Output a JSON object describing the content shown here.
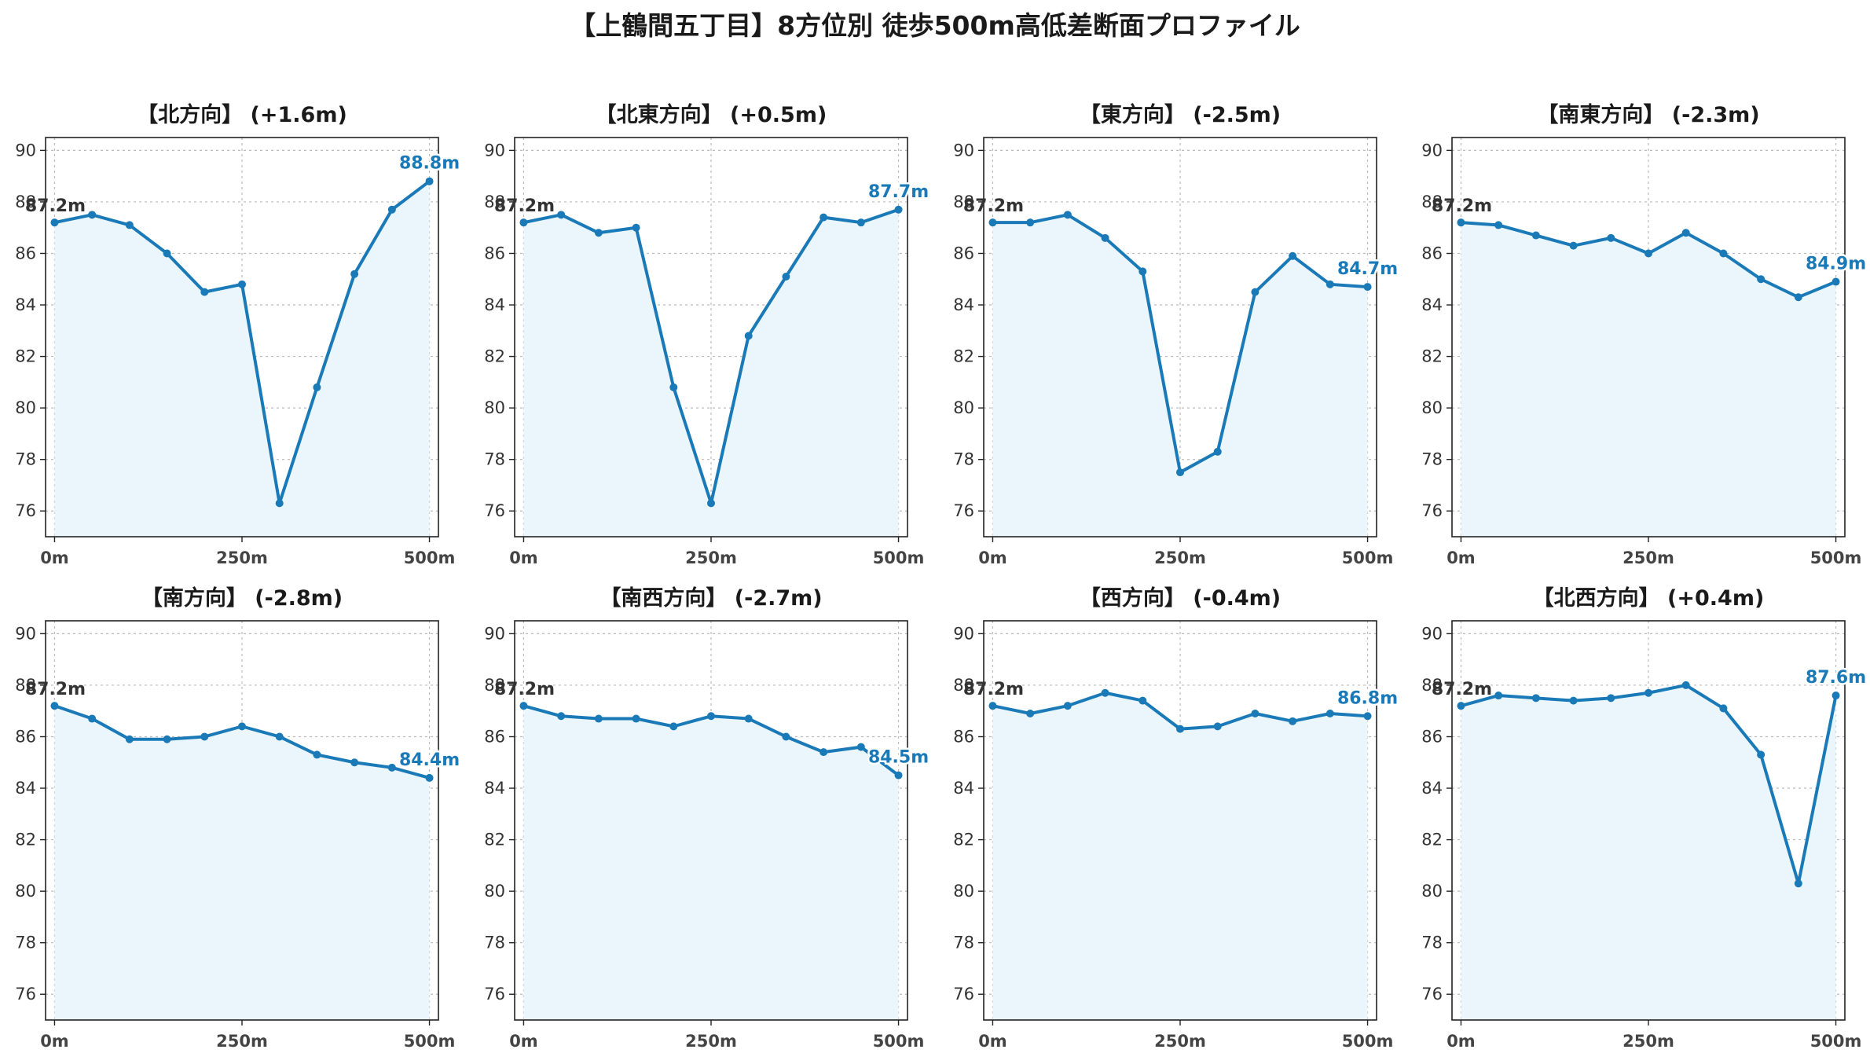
{
  "colors": {
    "line": "#1a7ab8",
    "fill": "#eaf6fb",
    "start_label": "#333333",
    "end_label": "#1a7ab8"
  },
  "chart_data": {
    "suptitle": "【上鶴間五丁目】8方位別 徒歩500m高低差断面プロファイル",
    "type": "line",
    "ylim": [
      75,
      90.5
    ],
    "yticks": [
      76,
      78,
      80,
      82,
      84,
      86,
      88,
      90
    ],
    "xlim": [
      -12,
      512
    ],
    "xticks": [
      0,
      250,
      500
    ],
    "xtick_labels": [
      "0m",
      "250m",
      "500m"
    ],
    "grid": true,
    "panels": [
      {
        "title": "【北方向】 (+1.6m)",
        "start_label": "87.2m",
        "end_label": "88.8m",
        "x": [
          0,
          50,
          100,
          150,
          200,
          250,
          300,
          350,
          400,
          450,
          500
        ],
        "y": [
          87.2,
          87.5,
          87.1,
          86.0,
          84.5,
          84.8,
          76.3,
          80.8,
          85.2,
          87.7,
          88.8
        ]
      },
      {
        "title": "【北東方向】 (+0.5m)",
        "start_label": "87.2m",
        "end_label": "87.7m",
        "x": [
          0,
          50,
          100,
          150,
          200,
          250,
          300,
          350,
          400,
          450,
          500
        ],
        "y": [
          87.2,
          87.5,
          86.8,
          87.0,
          80.8,
          76.3,
          82.8,
          85.1,
          87.4,
          87.2,
          87.7
        ]
      },
      {
        "title": "【東方向】 (-2.5m)",
        "start_label": "87.2m",
        "end_label": "84.7m",
        "x": [
          0,
          50,
          100,
          150,
          200,
          250,
          300,
          350,
          400,
          450,
          500
        ],
        "y": [
          87.2,
          87.2,
          87.5,
          86.6,
          85.3,
          77.5,
          78.3,
          84.5,
          85.9,
          84.8,
          84.7
        ]
      },
      {
        "title": "【南東方向】 (-2.3m)",
        "start_label": "87.2m",
        "end_label": "84.9m",
        "x": [
          0,
          50,
          100,
          150,
          200,
          250,
          300,
          350,
          400,
          450,
          500
        ],
        "y": [
          87.2,
          87.1,
          86.7,
          86.3,
          86.6,
          86.0,
          86.8,
          86.0,
          85.0,
          84.3,
          84.9
        ]
      },
      {
        "title": "【南方向】 (-2.8m)",
        "start_label": "87.2m",
        "end_label": "84.4m",
        "x": [
          0,
          50,
          100,
          150,
          200,
          250,
          300,
          350,
          400,
          450,
          500
        ],
        "y": [
          87.2,
          86.7,
          85.9,
          85.9,
          86.0,
          86.4,
          86.0,
          85.3,
          85.0,
          84.8,
          84.4
        ]
      },
      {
        "title": "【南西方向】 (-2.7m)",
        "start_label": "87.2m",
        "end_label": "84.5m",
        "x": [
          0,
          50,
          100,
          150,
          200,
          250,
          300,
          350,
          400,
          450,
          500
        ],
        "y": [
          87.2,
          86.8,
          86.7,
          86.7,
          86.4,
          86.8,
          86.7,
          86.0,
          85.4,
          85.6,
          84.5
        ]
      },
      {
        "title": "【西方向】 (-0.4m)",
        "start_label": "87.2m",
        "end_label": "86.8m",
        "x": [
          0,
          50,
          100,
          150,
          200,
          250,
          300,
          350,
          400,
          450,
          500
        ],
        "y": [
          87.2,
          86.9,
          87.2,
          87.7,
          87.4,
          86.3,
          86.4,
          86.9,
          86.6,
          86.9,
          86.8
        ]
      },
      {
        "title": "【北西方向】 (+0.4m)",
        "start_label": "87.2m",
        "end_label": "87.6m",
        "x": [
          0,
          50,
          100,
          150,
          200,
          250,
          300,
          350,
          400,
          450,
          500
        ],
        "y": [
          87.2,
          87.6,
          87.5,
          87.4,
          87.5,
          87.7,
          88.0,
          87.1,
          85.3,
          80.3,
          87.6
        ]
      }
    ]
  }
}
